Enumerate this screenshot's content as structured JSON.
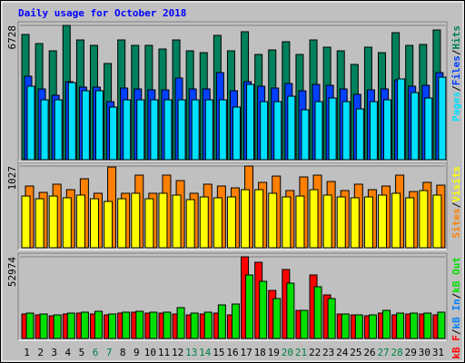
{
  "chart_data": [
    {
      "type": "bar",
      "title": "Daily usage for October 2018",
      "ylim": [
        0,
        6728
      ],
      "yticks": [
        6728
      ],
      "legend_order": "reverse",
      "separator": "/",
      "series": [
        {
          "name": "Hits",
          "color": "#00805c",
          "values": [
            6273,
            5819,
            5455,
            6728,
            6000,
            5728,
            4819,
            6000,
            5728,
            5728,
            5546,
            6000,
            5455,
            5364,
            6228,
            5455,
            6410,
            5273,
            5500,
            5910,
            5273,
            6000,
            5637,
            5455,
            4773,
            5637,
            5364,
            6364,
            5728,
            5773,
            6500
          ]
        },
        {
          "name": "Files",
          "color": "#0040ff",
          "values": [
            4182,
            3546,
            3228,
            3910,
            3637,
            3637,
            2909,
            3591,
            3546,
            3500,
            3500,
            4091,
            3546,
            3546,
            4364,
            3455,
            3910,
            3682,
            3591,
            3819,
            3455,
            3773,
            3728,
            3546,
            3273,
            3500,
            3546,
            4000,
            3682,
            3728,
            4364
          ]
        },
        {
          "name": "Pages",
          "color": "#00e0ff",
          "values": [
            3682,
            3000,
            3000,
            3864,
            3455,
            3455,
            2637,
            3000,
            3000,
            3000,
            3000,
            3000,
            3000,
            3000,
            3000,
            2637,
            3773,
            2909,
            2909,
            3182,
            2500,
            2909,
            3091,
            2909,
            2546,
            2909,
            3000,
            4046,
            3364,
            3091,
            4137
          ]
        }
      ]
    },
    {
      "type": "bar",
      "ylim": [
        0,
        1027
      ],
      "yticks": [
        1027
      ],
      "legend_order": "forward",
      "separator": "/",
      "series": [
        {
          "name": "Sites",
          "color": "#ff8000",
          "values": [
            776,
            696,
            799,
            730,
            867,
            685,
            1015,
            685,
            913,
            685,
            913,
            844,
            685,
            799,
            776,
            753,
            1027,
            822,
            901,
            719,
            890,
            913,
            833,
            719,
            799,
            730,
            776,
            913,
            707,
            822,
            787
          ]
        },
        {
          "name": "Visits",
          "color": "#ffff00",
          "values": [
            650,
            616,
            650,
            628,
            662,
            616,
            582,
            616,
            685,
            616,
            685,
            662,
            605,
            639,
            628,
            639,
            730,
            730,
            685,
            639,
            650,
            730,
            662,
            639,
            628,
            639,
            662,
            685,
            628,
            719,
            662
          ]
        }
      ]
    },
    {
      "type": "bar",
      "ylim": [
        0,
        52974
      ],
      "yticks": [
        52974
      ],
      "legend_order": "forward",
      "separator": "/",
      "categories": [
        "1",
        "2",
        "3",
        "4",
        "5",
        "6",
        "7",
        "8",
        "9",
        "10",
        "11",
        "12",
        "13",
        "14",
        "15",
        "16",
        "17",
        "18",
        "19",
        "20",
        "21",
        "22",
        "23",
        "24",
        "25",
        "26",
        "27",
        "28",
        "29",
        "30",
        "31"
      ],
      "category_colors": [
        "#000000",
        "#000000",
        "#000000",
        "#000000",
        "#000000",
        "#008040",
        "#008040",
        "#000000",
        "#000000",
        "#000000",
        "#000000",
        "#000000",
        "#008040",
        "#008040",
        "#000000",
        "#000000",
        "#000000",
        "#000000",
        "#000000",
        "#008040",
        "#008040",
        "#000000",
        "#000000",
        "#000000",
        "#000000",
        "#000000",
        "#008040",
        "#008040",
        "#000000",
        "#000000",
        "#000000"
      ],
      "series": [
        {
          "name": "kB F",
          "color": "#ff0000",
          "values": [
            15892,
            15304,
            14716,
            15892,
            16481,
            15892,
            15304,
            16481,
            17070,
            16481,
            16481,
            15892,
            15304,
            15892,
            16481,
            15304,
            52974,
            49442,
            31196,
            44734,
            18247,
            41202,
            28253,
            15892,
            15304,
            14716,
            16481,
            15304,
            15892,
            15892,
            15304
          ]
        },
        {
          "name": "kB In",
          "color": "#0080ff"
        },
        {
          "name": "kB Out",
          "color": "#00e000",
          "values": [
            16481,
            15892,
            15304,
            16481,
            17070,
            17659,
            15892,
            17070,
            17659,
            17070,
            17070,
            20012,
            16481,
            17070,
            21778,
            22367,
            41202,
            37082,
            25898,
            35905,
            18247,
            33550,
            25898,
            15892,
            15304,
            15304,
            18247,
            16481,
            16481,
            16481,
            17070
          ]
        }
      ]
    }
  ]
}
